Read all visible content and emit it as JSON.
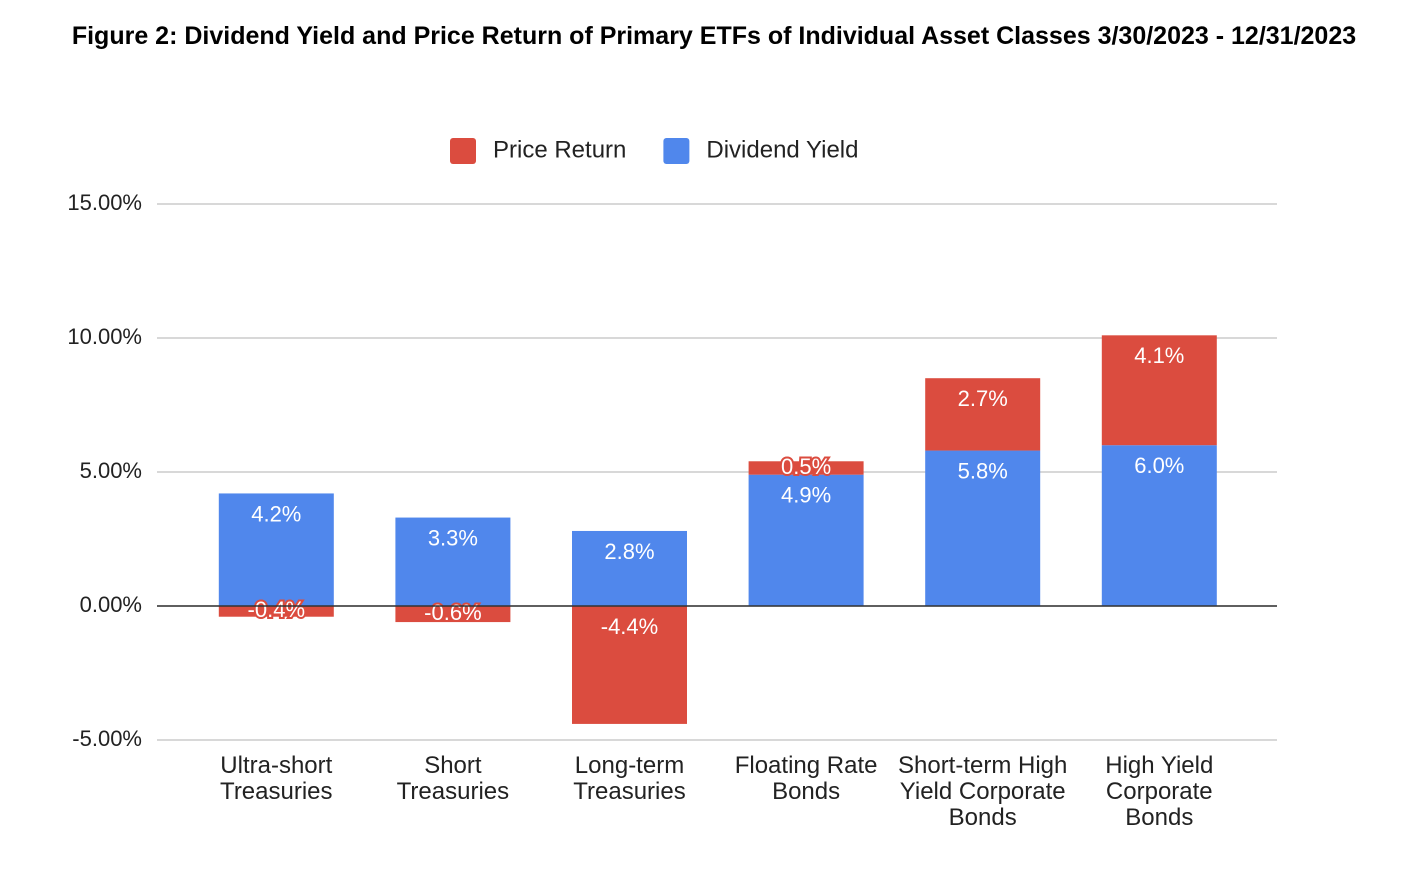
{
  "chart_data": {
    "type": "stacked_bar",
    "title": "Figure 2: Dividend Yield and Price Return of Primary ETFs of Individual Asset Classes 3/30/2023 - 12/31/2023",
    "categories": [
      "Ultra-short Treasuries",
      "Short Treasuries",
      "Long-term Treasuries",
      "Floating Rate Bonds",
      "Short-term High Yield Corporate Bonds",
      "High Yield Corporate Bonds"
    ],
    "series": [
      {
        "name": "Price Return",
        "color": "#db4c3f",
        "values": [
          -0.4,
          -0.6,
          -4.4,
          0.5,
          2.7,
          4.1
        ],
        "value_labels": [
          "-0.4%",
          "-0.6%",
          "-4.4%",
          "0.5%",
          "2.7%",
          "4.1%"
        ]
      },
      {
        "name": "Dividend Yield",
        "color": "#5087ec",
        "values": [
          4.2,
          3.3,
          2.8,
          4.9,
          5.8,
          6.0
        ],
        "value_labels": [
          "4.2%",
          "3.3%",
          "2.8%",
          "4.9%",
          "5.8%",
          "6.0%"
        ]
      }
    ],
    "ylim": [
      -5,
      15
    ],
    "yticks": [
      {
        "value": -5,
        "label": "-5.00%"
      },
      {
        "value": 0,
        "label": "0.00%"
      },
      {
        "value": 5,
        "label": "5.00%"
      },
      {
        "value": 10,
        "label": "10.00%"
      },
      {
        "value": 15,
        "label": "15.00%"
      }
    ],
    "grid": true,
    "legend": "top"
  }
}
